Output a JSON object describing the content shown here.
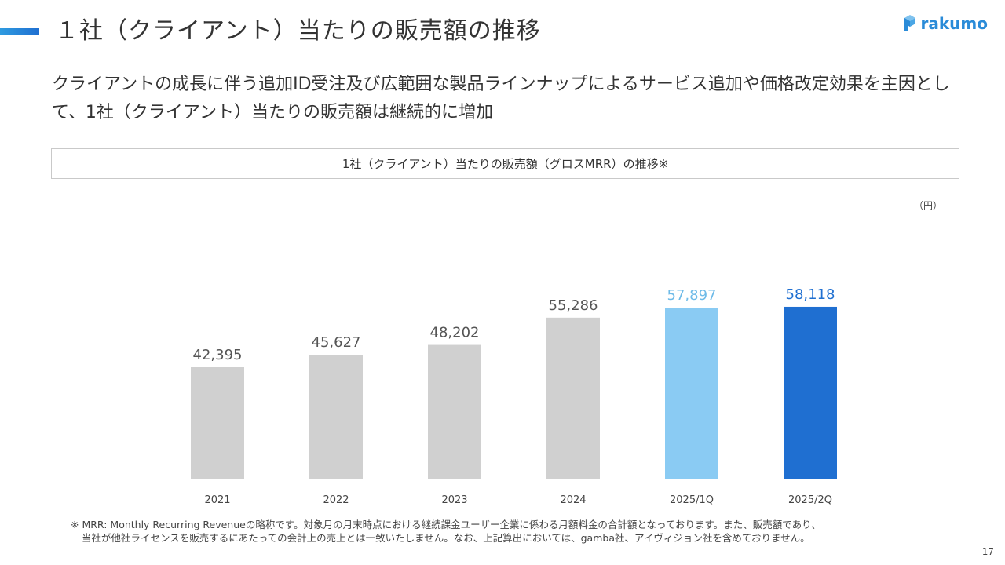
{
  "header": {
    "title": "１社（クライアント）当たりの販売額の推移",
    "logo_text": "rakumo",
    "accent_color": "#1f6fd1",
    "logo_color": "#2a8bd8"
  },
  "subtitle": "クライアントの成長に伴う追加ID受注及び広範囲な製品ラインナップによるサービス追加や価格改定効果を主因として、1社（クライアント）当たりの販売額は継続的に増加",
  "chart_box_title": "1社（クライアント）当たりの販売額（グロスMRR）の推移※",
  "unit_label": "（円）",
  "chart_data": {
    "type": "bar",
    "categories": [
      "2021",
      "2022",
      "2023",
      "2024",
      "2025/1Q",
      "2025/2Q"
    ],
    "values": [
      42395,
      45627,
      48202,
      55286,
      57897,
      58118
    ],
    "value_labels": [
      "42,395",
      "45,627",
      "48,202",
      "55,286",
      "57,897",
      "58,118"
    ],
    "bar_colors": [
      "#d0d0d0",
      "#d0d0d0",
      "#d0d0d0",
      "#d0d0d0",
      "#8acbf3",
      "#1f6fd1"
    ],
    "label_colors": [
      "#555555",
      "#555555",
      "#555555",
      "#555555",
      "#6fbbe8",
      "#1f6fd1"
    ],
    "title": "1社（クライアント）当たりの販売額（グロスMRR）の推移※",
    "ylabel": "（円）",
    "xlabel": "",
    "ylim": [
      0,
      65000
    ],
    "grid": false
  },
  "footnote": {
    "line1": "※ MRR: Monthly Recurring Revenueの略称です。対象月の月末時点における継続課金ユーザー企業に係わる月額料金の合計額となっております。また、販売額であり、",
    "line2": "当社が他社ライセンスを販売するにあたっての会計上の売上とは一致いたしません。なお、上記算出においては、gamba社、アイヴィジョン社を含めておりません。"
  },
  "page_number": "17"
}
